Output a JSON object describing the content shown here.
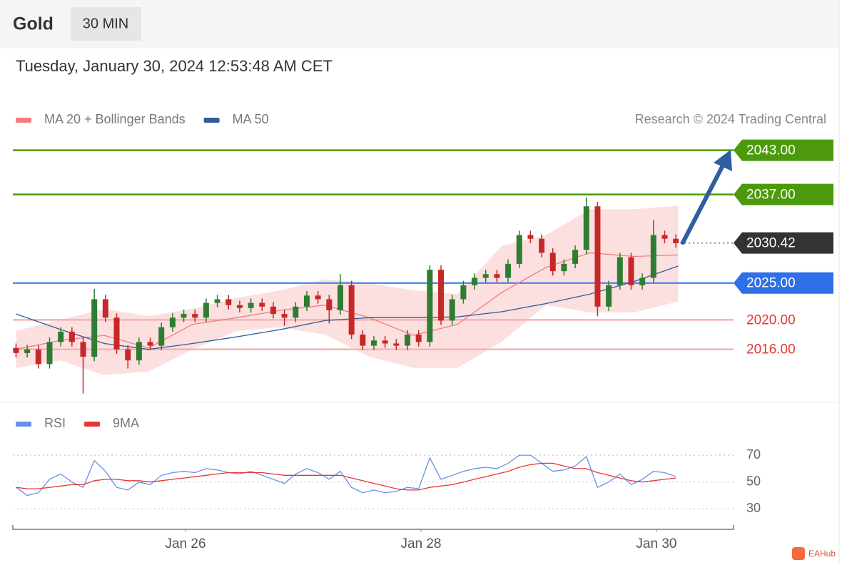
{
  "header": {
    "symbol": "Gold",
    "interval": "30 MIN",
    "timestamp": "Tuesday, January 30, 2024 12:53:48 AM CET"
  },
  "watermark": "EAHub",
  "chart_data": [
    {
      "type": "candlestick",
      "credit": "Research © 2024 Trading Central",
      "xlim": [
        24.533,
        30.655
      ],
      "ylim": [
        2009.2,
        2045.0
      ],
      "up_color": "#2e7d32",
      "down_color": "#c62828",
      "x": [
        24.56,
        24.655,
        24.75,
        24.845,
        24.94,
        25.035,
        25.13,
        25.225,
        25.32,
        25.415,
        25.51,
        25.605,
        25.7,
        25.795,
        25.89,
        25.985,
        26.08,
        26.175,
        26.27,
        26.365,
        26.46,
        26.555,
        26.65,
        26.745,
        26.84,
        26.935,
        27.03,
        27.125,
        27.22,
        27.315,
        27.41,
        27.505,
        27.6,
        27.695,
        27.79,
        27.885,
        27.98,
        28.075,
        28.17,
        28.265,
        28.36,
        28.455,
        28.55,
        28.645,
        28.74,
        28.835,
        28.93,
        29.025,
        29.12,
        29.215,
        29.31,
        29.405,
        29.5,
        29.595,
        29.69,
        29.785,
        29.88,
        29.975,
        30.07,
        30.165
      ],
      "open": [
        2016.2,
        2015.5,
        2016.0,
        2014.0,
        2017.0,
        2018.4,
        2017.0,
        2015.0,
        2022.8,
        2020.3,
        2016.0,
        2014.5,
        2017.0,
        2016.5,
        2019.0,
        2020.3,
        2020.8,
        2020.3,
        2022.3,
        2022.8,
        2022.0,
        2021.6,
        2022.3,
        2021.8,
        2020.8,
        2020.3,
        2021.8,
        2023.3,
        2022.8,
        2021.3,
        2024.7,
        2018.0,
        2016.5,
        2017.2,
        2016.8,
        2016.5,
        2018.0,
        2017.0,
        2026.8,
        2019.9,
        2022.8,
        2024.7,
        2025.7,
        2026.2,
        2025.7,
        2027.6,
        2031.5,
        2031.0,
        2029.1,
        2026.6,
        2027.6,
        2029.5,
        2035.4,
        2021.8,
        2024.7,
        2028.5,
        2024.7,
        2025.7,
        2031.5,
        2031.0
      ],
      "high": [
        2016.8,
        2016.6,
        2016.6,
        2017.6,
        2019.0,
        2019.0,
        2017.6,
        2024.2,
        2023.4,
        2020.9,
        2016.6,
        2017.6,
        2017.6,
        2019.6,
        2020.9,
        2021.4,
        2021.4,
        2022.9,
        2023.4,
        2023.4,
        2022.6,
        2022.9,
        2022.9,
        2022.4,
        2021.4,
        2022.4,
        2023.9,
        2023.9,
        2023.4,
        2026.2,
        2025.3,
        2018.6,
        2017.8,
        2017.8,
        2017.4,
        2018.6,
        2018.6,
        2027.4,
        2027.4,
        2023.4,
        2025.3,
        2026.3,
        2026.8,
        2026.8,
        2028.2,
        2032.1,
        2032.1,
        2031.6,
        2029.7,
        2028.2,
        2030.1,
        2036.6,
        2036.0,
        2025.3,
        2029.1,
        2029.1,
        2026.3,
        2033.5,
        2032.1,
        2031.6
      ],
      "low": [
        2014.9,
        2014.9,
        2013.4,
        2013.4,
        2016.4,
        2016.4,
        2010.0,
        2014.4,
        2019.7,
        2015.4,
        2013.4,
        2013.9,
        2015.9,
        2015.9,
        2018.4,
        2019.7,
        2019.7,
        2019.7,
        2021.7,
        2021.4,
        2021.0,
        2021.0,
        2021.2,
        2020.2,
        2019.2,
        2019.7,
        2021.2,
        2022.2,
        2019.5,
        2020.7,
        2017.4,
        2015.9,
        2015.9,
        2016.2,
        2015.9,
        2015.9,
        2016.4,
        2016.4,
        2019.3,
        2019.3,
        2022.2,
        2024.1,
        2025.1,
        2025.1,
        2025.1,
        2027.0,
        2030.4,
        2028.5,
        2026.0,
        2026.0,
        2027.0,
        2028.9,
        2020.5,
        2021.2,
        2024.1,
        2024.1,
        2024.1,
        2025.1,
        2030.4,
        2029.8
      ],
      "close": [
        2015.5,
        2016.0,
        2014.0,
        2017.0,
        2018.4,
        2017.0,
        2015.0,
        2022.8,
        2020.3,
        2016.0,
        2014.5,
        2017.0,
        2016.5,
        2019.0,
        2020.3,
        2020.8,
        2020.3,
        2022.3,
        2022.8,
        2022.0,
        2021.6,
        2022.3,
        2021.8,
        2020.8,
        2020.3,
        2021.8,
        2023.3,
        2022.8,
        2021.3,
        2024.7,
        2018.0,
        2016.5,
        2017.2,
        2016.8,
        2016.5,
        2018.0,
        2017.0,
        2026.8,
        2019.9,
        2022.8,
        2024.7,
        2025.7,
        2026.2,
        2025.7,
        2027.6,
        2031.5,
        2031.0,
        2029.1,
        2026.6,
        2027.6,
        2029.5,
        2035.4,
        2021.8,
        2024.7,
        2028.5,
        2024.7,
        2025.7,
        2031.5,
        2031.0,
        2030.4
      ],
      "overlay_x": [
        24.56,
        24.935,
        25.31,
        25.685,
        26.06,
        26.435,
        26.81,
        27.185,
        27.56,
        27.935,
        28.31,
        28.685,
        29.06,
        29.435,
        29.81,
        30.185
      ],
      "overlays": [
        {
          "name": "MA 20 + Bollinger Bands",
          "color": "#f47c7c",
          "band_color": "#fbd9d9",
          "values": [
            2016.0,
            2017.2,
            2017.9,
            2016.2,
            2019.4,
            2020.3,
            2021.3,
            2022.0,
            2020.3,
            2017.9,
            2019.4,
            2023.7,
            2027.1,
            2029.1,
            2028.6,
            2028.8
          ],
          "upper": [
            2018.5,
            2020,
            2021.5,
            2020.5,
            2021.5,
            2023,
            2024,
            2025.5,
            2025,
            2024,
            2023.5,
            2030,
            2031.5,
            2035,
            2035,
            2035.5
          ],
          "lower": [
            2013.5,
            2014.5,
            2012.5,
            2013,
            2016,
            2018.5,
            2019,
            2018,
            2015,
            2013.5,
            2013.5,
            2017,
            2022,
            2021,
            2021,
            2022.5
          ]
        },
        {
          "name": "MA 50",
          "color": "#2f5d9e",
          "values": [
            2020.8,
            2018.7,
            2016.8,
            2016.0,
            2016.8,
            2017.7,
            2018.7,
            2019.9,
            2020.3,
            2020.3,
            2020.4,
            2021.1,
            2022.2,
            2023.5,
            2025.2,
            2027.3
          ]
        }
      ],
      "levels": {
        "values": [
          2043,
          2037,
          2025,
          2020,
          2016
        ],
        "value_labels": [
          "2043.00",
          "2037.00",
          "2025.00",
          "2020.00",
          "2016.00"
        ],
        "colors": [
          "#4c9a0c",
          "#4c9a0c",
          "#5b8def",
          "#f6b3b3",
          "#f6b3b3"
        ],
        "text_colors": [
          "#ffffff",
          "#ffffff",
          "#ffffff",
          "#e53935",
          "#e53935"
        ],
        "boxed": [
          true,
          true,
          true,
          false,
          false
        ],
        "box_colors": [
          "#4c9a0c",
          "#4c9a0c",
          "#2f6fe8",
          null,
          null
        ]
      },
      "last": 2030.42,
      "last_color": "#333333"
    },
    {
      "type": "line",
      "xlim": [
        24.533,
        30.655
      ],
      "ylim": [
        20,
        77
      ],
      "yticks": [
        30,
        50,
        70
      ],
      "xticks": [
        {
          "value": 26,
          "label": "Jan 26"
        },
        {
          "value": 28,
          "label": "Jan 28"
        },
        {
          "value": 30,
          "label": "Jan 30"
        }
      ],
      "x": [
        24.56,
        24.655,
        24.75,
        24.845,
        24.94,
        25.035,
        25.13,
        25.225,
        25.32,
        25.415,
        25.51,
        25.605,
        25.7,
        25.795,
        25.89,
        25.985,
        26.08,
        26.175,
        26.27,
        26.365,
        26.46,
        26.555,
        26.65,
        26.745,
        26.84,
        26.935,
        27.03,
        27.125,
        27.22,
        27.315,
        27.41,
        27.505,
        27.6,
        27.695,
        27.79,
        27.885,
        27.98,
        28.075,
        28.17,
        28.265,
        28.36,
        28.455,
        28.55,
        28.645,
        28.74,
        28.835,
        28.93,
        29.025,
        29.12,
        29.215,
        29.31,
        29.405,
        29.5,
        29.595,
        29.69,
        29.785,
        29.88,
        29.975,
        30.07,
        30.165
      ],
      "series": [
        {
          "name": "RSI",
          "color": "#6a8fe8",
          "values": [
            46,
            40,
            42,
            52,
            56,
            50,
            46,
            66,
            58,
            46,
            44,
            50,
            48,
            55,
            57,
            58,
            57,
            60,
            59,
            57,
            56,
            58,
            55,
            52,
            49,
            56,
            60,
            57,
            52,
            58,
            46,
            42,
            44,
            42,
            43,
            46,
            45,
            68,
            52,
            55,
            58,
            60,
            61,
            60,
            64,
            70,
            70,
            64,
            58,
            59,
            62,
            69,
            46,
            50,
            56,
            48,
            52,
            58,
            57,
            54
          ]
        },
        {
          "name": "9MA",
          "color": "#e53935",
          "values": [
            46,
            45,
            45,
            46,
            47,
            48,
            48,
            51,
            52,
            52,
            51,
            51,
            50,
            51,
            52,
            53,
            54,
            55,
            56,
            57,
            57,
            57,
            57,
            56,
            55,
            55,
            55,
            55,
            55,
            55,
            53,
            51,
            49,
            47,
            45,
            44,
            44,
            46,
            47,
            48,
            50,
            52,
            54,
            56,
            58,
            61,
            63,
            64,
            64,
            62,
            60,
            60,
            57,
            55,
            53,
            51,
            50,
            51,
            52,
            53
          ]
        }
      ]
    }
  ]
}
